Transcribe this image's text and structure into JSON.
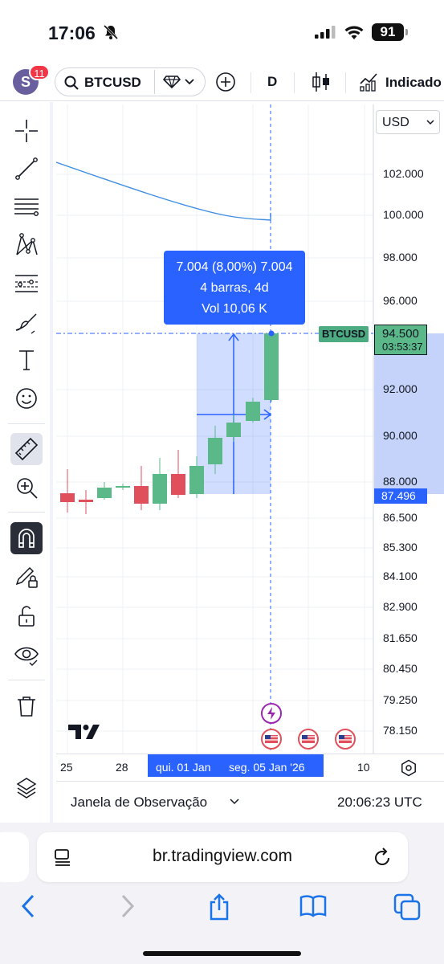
{
  "status": {
    "time": "17:06",
    "battery": "91"
  },
  "toolbar": {
    "notifications": "11",
    "avatar_letter": "S",
    "symbol": "BTCUSD",
    "interval": "D",
    "indicators_label": "Indicado"
  },
  "chart": {
    "currency": "USD",
    "price_axis": [
      "102.000",
      "100.000",
      "98.000",
      "96.000",
      "92.000",
      "90.000",
      "88.000",
      "86.500",
      "85.300",
      "84.100",
      "82.900",
      "81.650",
      "80.450",
      "79.250",
      "78.150"
    ],
    "last_price": "94.500",
    "countdown": "03:53:37",
    "symbol_tag": "BTCUSD",
    "measure_low": "87.496",
    "measure": {
      "line1": "7.004 (8,00%) 7.004",
      "line2": "4 barras, 4d",
      "line3": "Vol 10,06 K"
    },
    "time_axis": {
      "t1": "25",
      "t2": "28",
      "t3": "qui. 01 Jan",
      "t4": "seg. 05 Jan '26",
      "t5": "10"
    },
    "colors": {
      "up": "#5bb889",
      "down": "#e0505c",
      "accent": "#2962ff",
      "ma": "#3f8ee0"
    }
  },
  "bottom": {
    "watchlist": "Janela de Observação",
    "clock": "20:06:23 UTC"
  },
  "safari": {
    "url": "br.tradingview.com"
  }
}
